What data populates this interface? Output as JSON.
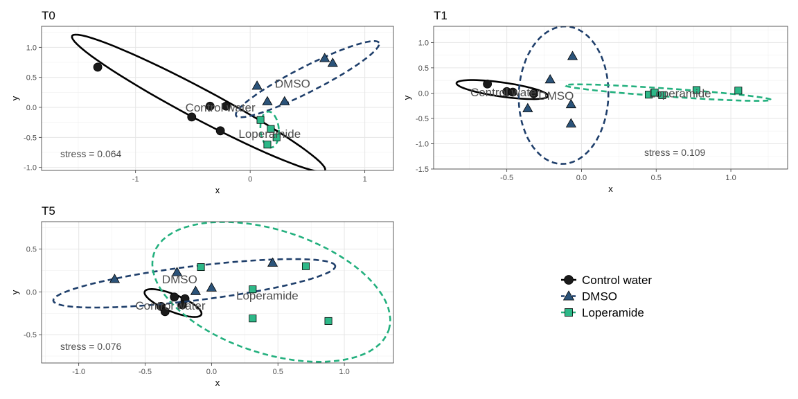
{
  "colors": {
    "Control water": "#000000",
    "DMSO": "#1f3f6b",
    "Loperamide": "#23b07e",
    "DMSO_fill": "#2b5379",
    "Loperamide_fill": "#2db888",
    "Control_fill": "#1a1a1a"
  },
  "legend": {
    "placement": "right",
    "items": [
      {
        "label": "Control water",
        "shape": "circle",
        "line": "solid"
      },
      {
        "label": "DMSO",
        "shape": "triangle",
        "line": "dashed"
      },
      {
        "label": "Loperamide",
        "shape": "square",
        "line": "dashed"
      }
    ]
  },
  "chart_data": [
    {
      "type": "scatter",
      "title": "T0",
      "xlabel": "x",
      "ylabel": "y",
      "xlim": [
        -1.82,
        1.25
      ],
      "ylim": [
        -1.05,
        1.35
      ],
      "xticks": [
        -1,
        0,
        1
      ],
      "xticklabels": [
        "-1",
        "0",
        "1"
      ],
      "yticks": [
        -1.0,
        -0.5,
        0.0,
        0.5,
        1.0
      ],
      "yticklabels": [
        "-1.0",
        "-0.5",
        "0.0",
        "0.5",
        "1.0"
      ],
      "grid": true,
      "stress": "stress = 0.064",
      "series": [
        {
          "name": "Control water",
          "points": [
            [
              -1.33,
              0.67
            ],
            [
              -0.35,
              0.02
            ],
            [
              -0.51,
              -0.16
            ],
            [
              -0.21,
              0.02
            ],
            [
              -0.26,
              -0.39
            ]
          ],
          "ellipse": {
            "cx": -0.45,
            "cy": 0.07,
            "rx": 1.25,
            "ry": 0.25,
            "angle": -28
          },
          "label_at": [
            -0.26,
            0.0
          ]
        },
        {
          "name": "DMSO",
          "points": [
            [
              0.65,
              0.82
            ],
            [
              0.72,
              0.74
            ],
            [
              0.06,
              0.36
            ],
            [
              0.15,
              0.1
            ],
            [
              0.3,
              0.1
            ]
          ],
          "ellipse": {
            "cx": 0.5,
            "cy": 0.47,
            "rx": 0.7,
            "ry": 0.21,
            "angle": 27
          },
          "label_at": [
            0.37,
            0.4
          ]
        },
        {
          "name": "Loperamide",
          "points": [
            [
              0.09,
              -0.21
            ],
            [
              0.18,
              -0.36
            ],
            [
              0.23,
              -0.5
            ],
            [
              0.15,
              -0.62
            ]
          ],
          "ellipse": {
            "cx": 0.17,
            "cy": -0.37,
            "rx": 0.08,
            "ry": 0.3,
            "angle": 5
          },
          "label_at": [
            0.17,
            -0.44
          ]
        }
      ]
    },
    {
      "type": "scatter",
      "title": "T1",
      "xlabel": "x",
      "ylabel": "y",
      "xlim": [
        -0.99,
        1.38
      ],
      "ylim": [
        -1.5,
        1.32
      ],
      "xticks": [
        -0.5,
        0.0,
        0.5,
        1.0
      ],
      "xticklabels": [
        "-0.5",
        "0.0",
        "0.5",
        "1.0"
      ],
      "yticks": [
        -1.5,
        -1.0,
        -0.5,
        0.0,
        0.5,
        1.0
      ],
      "yticklabels": [
        "-1.5",
        "-1.0",
        "-0.5",
        "0.0",
        "0.5",
        "1.0"
      ],
      "grid": true,
      "stress": "stress = 0.109",
      "series": [
        {
          "name": "Control water",
          "points": [
            [
              -0.63,
              0.18
            ],
            [
              -0.5,
              0.03
            ],
            [
              -0.46,
              0.02
            ],
            [
              -0.32,
              -0.01
            ]
          ],
          "ellipse": {
            "cx": -0.53,
            "cy": 0.07,
            "rx": 0.31,
            "ry": 0.14,
            "angle": -8
          },
          "label_at": [
            -0.51,
            0.02
          ]
        },
        {
          "name": "DMSO",
          "points": [
            [
              -0.06,
              0.73
            ],
            [
              -0.21,
              0.27
            ],
            [
              -0.07,
              -0.22
            ],
            [
              -0.36,
              -0.3
            ],
            [
              -0.07,
              -0.6
            ]
          ],
          "ellipse": {
            "cx": -0.12,
            "cy": -0.04,
            "rx": 0.3,
            "ry": 1.36,
            "angle": -2
          },
          "label_at": [
            -0.17,
            -0.05
          ]
        },
        {
          "name": "Loperamide",
          "points": [
            [
              0.45,
              -0.03
            ],
            [
              0.49,
              0.01
            ],
            [
              0.54,
              -0.04
            ],
            [
              0.77,
              0.06
            ],
            [
              1.05,
              0.05
            ]
          ],
          "ellipse": {
            "cx": 0.58,
            "cy": 0.01,
            "rx": 0.69,
            "ry": 0.08,
            "angle": -4
          },
          "label_at": [
            0.66,
            0.0
          ]
        }
      ]
    },
    {
      "type": "scatter",
      "title": "T5",
      "xlabel": "x",
      "ylabel": "y",
      "xlim": [
        -1.28,
        1.37
      ],
      "ylim": [
        -0.83,
        0.82
      ],
      "xticks": [
        -1.0,
        -0.5,
        0.0,
        0.5,
        1.0
      ],
      "xticklabels": [
        "-1.0",
        "-0.5",
        "0.0",
        "0.5",
        "1.0"
      ],
      "yticks": [
        -0.5,
        0.0,
        0.5
      ],
      "yticklabels": [
        "-0.5",
        "0.0",
        "0.5"
      ],
      "grid": true,
      "stress": "stress = 0.076",
      "series": [
        {
          "name": "Control water",
          "points": [
            [
              -0.28,
              -0.06
            ],
            [
              -0.2,
              -0.08
            ],
            [
              -0.38,
              -0.17
            ],
            [
              -0.22,
              -0.15
            ],
            [
              -0.35,
              -0.23
            ]
          ],
          "ellipse": {
            "cx": -0.29,
            "cy": -0.13,
            "rx": 0.23,
            "ry": 0.1,
            "angle": -22
          },
          "label_at": [
            -0.31,
            -0.16
          ]
        },
        {
          "name": "DMSO",
          "points": [
            [
              -0.73,
              0.15
            ],
            [
              -0.26,
              0.23
            ],
            [
              -0.12,
              0.01
            ],
            [
              0.0,
              0.05
            ],
            [
              0.46,
              0.34
            ]
          ],
          "ellipse": {
            "cx": -0.13,
            "cy": 0.1,
            "rx": 1.07,
            "ry": 0.2,
            "angle": 7
          },
          "label_at": [
            -0.24,
            0.15
          ]
        },
        {
          "name": "Loperamide",
          "points": [
            [
              -0.08,
              0.29
            ],
            [
              0.71,
              0.3
            ],
            [
              0.31,
              0.03
            ],
            [
              0.31,
              -0.31
            ],
            [
              0.88,
              -0.34
            ]
          ],
          "ellipse": {
            "cx": 0.45,
            "cy": 0.0,
            "rx": 0.93,
            "ry": 0.72,
            "angle": -18
          },
          "label_at": [
            0.42,
            -0.04
          ]
        }
      ]
    }
  ]
}
